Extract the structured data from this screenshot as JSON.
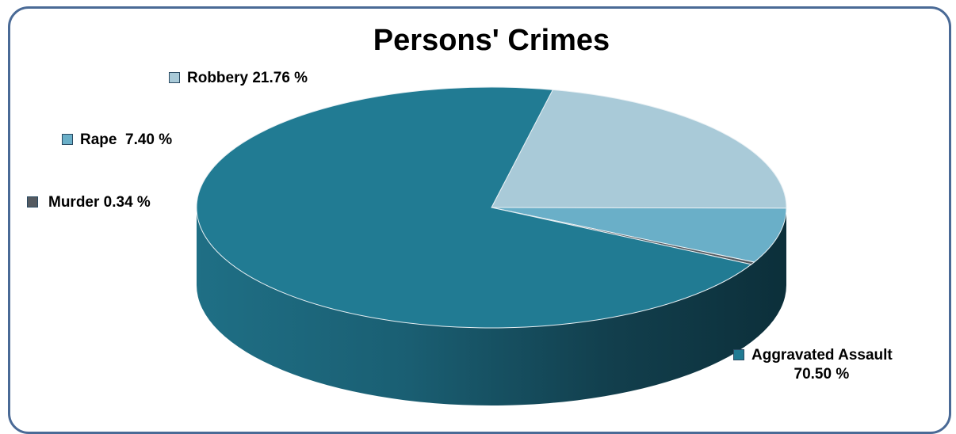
{
  "chart_data": {
    "type": "pie",
    "style": "3d",
    "title": "Persons' Crimes",
    "slices": [
      {
        "label": "Robbery",
        "value": 21.76,
        "display": "Robbery 21.76 %",
        "color": "#a9cad8"
      },
      {
        "label": "Rape",
        "value": 7.4,
        "display": "Rape  7.40 %",
        "color": "#6aafc8"
      },
      {
        "label": "Murder",
        "value": 0.34,
        "display": "Murder 0.34 %",
        "color": "#555a60"
      },
      {
        "label": "Aggravated Assault",
        "value": 70.5,
        "display_line1": "Aggravated Assault",
        "display_line2": "70.50 %",
        "color": "#217b93"
      }
    ],
    "legend": "labels beside slices"
  }
}
